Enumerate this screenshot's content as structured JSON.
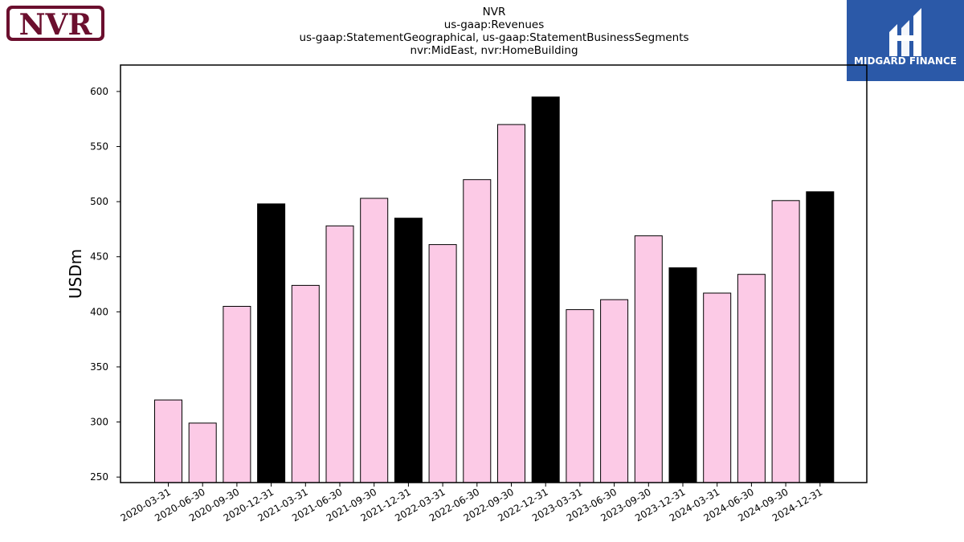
{
  "header": {
    "title_lines": [
      "NVR",
      "us-gaap:Revenues",
      "us-gaap:StatementGeographical, us-gaap:StatementBusinessSegments",
      "nvr:MidEast, nvr:HomeBuilding"
    ]
  },
  "logos": {
    "left_text": "NVR",
    "left_color": "#6b0f2e",
    "right_text": "MIDGARD FINANCE",
    "right_color": "#2b59a8"
  },
  "chart_data": {
    "type": "bar",
    "ylabel": "USDm",
    "xlabel": "",
    "ylim": [
      245,
      624
    ],
    "yticks": [
      250,
      300,
      350,
      400,
      450,
      500,
      550,
      600
    ],
    "categories": [
      "2020-03-31",
      "2020-06-30",
      "2020-09-30",
      "2020-12-31",
      "2021-03-31",
      "2021-06-30",
      "2021-09-30",
      "2021-12-31",
      "2022-03-31",
      "2022-06-30",
      "2022-09-30",
      "2022-12-31",
      "2023-03-31",
      "2023-06-30",
      "2023-09-30",
      "2023-12-31",
      "2024-03-31",
      "2024-06-30",
      "2024-09-30",
      "2024-12-31"
    ],
    "values": [
      320,
      299,
      405,
      498,
      424,
      478,
      503,
      485,
      461,
      520,
      570,
      595,
      402,
      411,
      469,
      440,
      417,
      434,
      501,
      509
    ],
    "bar_colors": {
      "quarter": "#fccae6",
      "year_end": "#000000"
    },
    "grid": false
  }
}
